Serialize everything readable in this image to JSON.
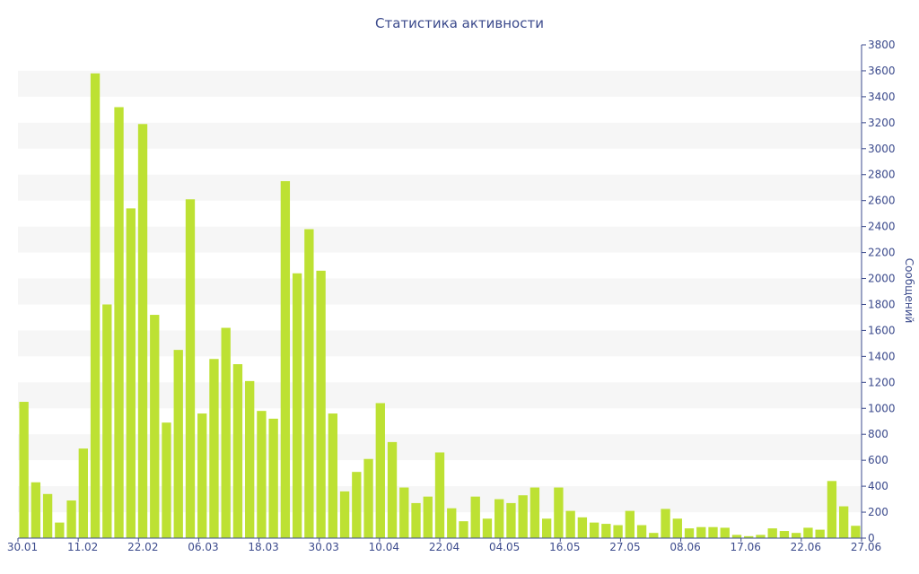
{
  "chart_data": {
    "type": "bar",
    "title": "Статистика активности",
    "xlabel": "",
    "ylabel": "Сообщений",
    "ylim": [
      0,
      3800
    ],
    "y_ticks": [
      0,
      200,
      400,
      600,
      800,
      1000,
      1200,
      1400,
      1600,
      1800,
      2000,
      2200,
      2400,
      2600,
      2800,
      3000,
      3200,
      3400,
      3600,
      3800
    ],
    "x_tick_labels": [
      "30.01",
      "11.02",
      "22.02",
      "06.03",
      "18.03",
      "30.03",
      "10.04",
      "22.04",
      "04.05",
      "16.05",
      "27.05",
      "08.06",
      "17.06",
      "22.06",
      "27.06"
    ],
    "y_axis_side": "right",
    "grid": "alternating horizontal bands",
    "bar_color": "#bde133",
    "band_color": "#f6f6f6",
    "text_color": "#3b4a8c",
    "values": [
      1050,
      430,
      340,
      120,
      290,
      690,
      3580,
      1800,
      3320,
      2540,
      3190,
      1720,
      890,
      1450,
      2610,
      960,
      1380,
      1620,
      1340,
      1210,
      980,
      920,
      2750,
      2040,
      2380,
      2060,
      960,
      360,
      510,
      610,
      1040,
      740,
      390,
      270,
      320,
      660,
      230,
      130,
      320,
      150,
      300,
      270,
      330,
      390,
      150,
      390,
      210,
      160,
      120,
      110,
      100,
      210,
      100,
      40,
      225,
      150,
      75,
      85,
      85,
      80,
      25,
      15,
      25,
      75,
      55,
      40,
      80,
      65,
      440,
      245,
      95
    ]
  }
}
